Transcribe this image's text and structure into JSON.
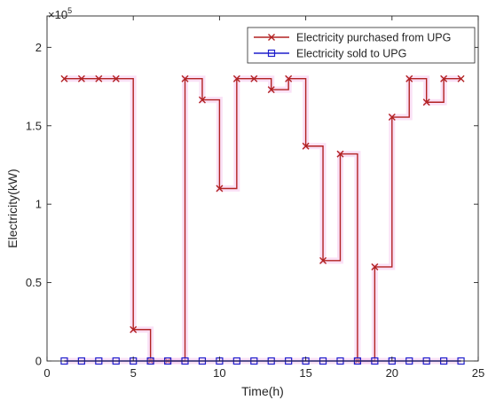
{
  "chart_data": {
    "type": "line",
    "step": true,
    "xlabel": "Time(h)",
    "ylabel": "Electricity(kW)",
    "y_exponent_label": "×10",
    "y_exponent": "5",
    "xlim": [
      0,
      25
    ],
    "ylim": [
      0,
      2.2
    ],
    "x_ticks": [
      0,
      5,
      10,
      15,
      20,
      25
    ],
    "x_tick_labels": [
      "0",
      "5",
      "10",
      "15",
      "20",
      "25"
    ],
    "y_ticks": [
      0,
      0.5,
      1,
      1.5,
      2
    ],
    "y_tick_labels": [
      "0",
      "0.5",
      "1",
      "1.5",
      "2"
    ],
    "grid": false,
    "legend_position": "top-right",
    "x": [
      1,
      2,
      3,
      4,
      5,
      6,
      7,
      8,
      9,
      10,
      11,
      12,
      13,
      14,
      15,
      16,
      17,
      18,
      19,
      20,
      21,
      22,
      23,
      24
    ],
    "series": [
      {
        "name": "Electricity purchased from UPG",
        "color": "#b22222",
        "marker": "x",
        "values": [
          1.8,
          1.8,
          1.8,
          1.8,
          0.2,
          0,
          0,
          1.8,
          1.665,
          1.1,
          1.8,
          1.8,
          1.73,
          1.8,
          1.37,
          0.64,
          1.32,
          0,
          0.6,
          1.555,
          1.8,
          1.65,
          1.8,
          1.8
        ]
      },
      {
        "name": "Electricity sold to UPG",
        "color": "#1f1fcc",
        "marker": "square",
        "values": [
          0,
          0,
          0,
          0,
          0,
          0,
          0,
          0,
          0,
          0,
          0,
          0,
          0,
          0,
          0,
          0,
          0,
          0,
          0,
          0,
          0,
          0,
          0,
          0
        ]
      }
    ]
  }
}
